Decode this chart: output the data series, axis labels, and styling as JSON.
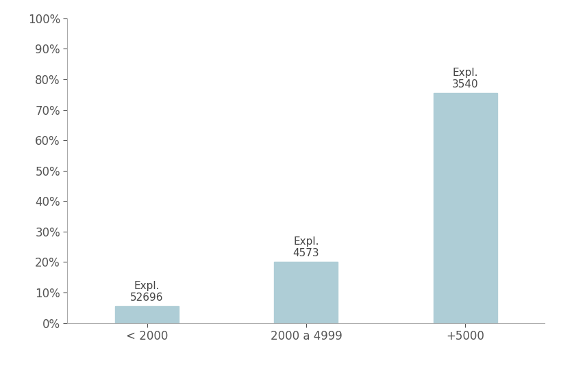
{
  "categories": [
    "< 2000",
    "2000 a 4999",
    "+5000"
  ],
  "values": [
    0.055,
    0.2,
    0.755
  ],
  "bar_labels_number": [
    "52696",
    "4573",
    "3540"
  ],
  "bar_labels_expl": [
    "Expl.",
    "Expl.",
    "Expl."
  ],
  "bar_color": "#aecdd6",
  "bar_edgecolor": "#aecdd6",
  "ylim": [
    0,
    1.0
  ],
  "yticks": [
    0.0,
    0.1,
    0.2,
    0.3,
    0.4,
    0.5,
    0.6,
    0.7,
    0.8,
    0.9,
    1.0
  ],
  "background_color": "#ffffff",
  "tick_fontsize": 12,
  "annotation_fontsize": 11,
  "xtick_fontsize": 12,
  "bar_width": 0.4,
  "annotation_color": "#444444",
  "tick_color": "#555555",
  "spine_color": "#aaaaaa"
}
